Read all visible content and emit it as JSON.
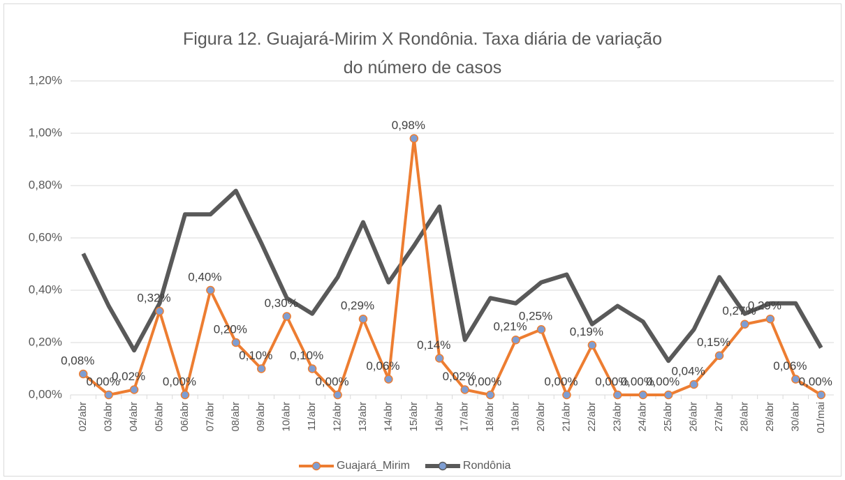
{
  "chart_data": {
    "type": "line",
    "title": "Figura 12. Guajará-Mirim X Rondônia. Taxa diária de variação do número de casos",
    "categories": [
      "02/abr",
      "03/abr",
      "04/abr",
      "05/abr",
      "06/abr",
      "07/abr",
      "08/abr",
      "09/abr",
      "10/abr",
      "11/abr",
      "12/abr",
      "13/abr",
      "14/abr",
      "15/abr",
      "16/abr",
      "17/abr",
      "18/abr",
      "19/abr",
      "20/abr",
      "21/abr",
      "22/abr",
      "23/abr",
      "24/abr",
      "25/abr",
      "26/abr",
      "27/abr",
      "28/abr",
      "29/abr",
      "30/abr",
      "01/mai"
    ],
    "series": [
      {
        "name": "Guajará_Mirim",
        "color": "#ed7d31",
        "values": [
          0.08,
          0.0,
          0.02,
          0.32,
          0.0,
          0.4,
          0.2,
          0.1,
          0.3,
          0.1,
          0.0,
          0.29,
          0.06,
          0.98,
          0.14,
          0.02,
          0.0,
          0.21,
          0.25,
          0.0,
          0.19,
          0.0,
          0.0,
          0.0,
          0.04,
          0.15,
          0.27,
          0.29,
          0.06,
          0.0
        ],
        "value_labels": [
          "0,08%",
          "0,00%",
          "0,02%",
          "0,32%",
          "0,00%",
          "0,40%",
          "0,20%",
          "0,10%",
          "0,30%",
          "0,10%",
          "0,00%",
          "0,29%",
          "0,06%",
          "0,98%",
          "0,14%",
          "0,02%",
          "0,00%",
          "0,21%",
          "0,25%",
          "0,00%",
          "0,19%",
          "0,00%",
          "0,00%",
          "0,00%",
          "0,04%",
          "0,15%",
          "0,27%",
          "0,29%",
          "0,06%",
          "0,00%"
        ]
      },
      {
        "name": "Rondônia",
        "color": "#595959",
        "values": [
          0.54,
          0.34,
          0.17,
          0.35,
          0.69,
          0.69,
          0.78,
          0.58,
          0.37,
          0.31,
          0.45,
          0.66,
          0.43,
          0.57,
          0.72,
          0.21,
          0.37,
          0.35,
          0.43,
          0.46,
          0.27,
          0.34,
          0.28,
          0.13,
          0.25,
          0.45,
          0.31,
          0.35,
          0.35,
          0.18
        ]
      }
    ],
    "ylim": [
      0,
      1.2
    ],
    "yticks": [
      {
        "value": 0,
        "label": "0,00%"
      },
      {
        "value": 0.2,
        "label": "0,20%"
      },
      {
        "value": 0.4,
        "label": "0,40%"
      },
      {
        "value": 0.6,
        "label": "0,60%"
      },
      {
        "value": 0.8,
        "label": "0,80%"
      },
      {
        "value": 1.0,
        "label": "1,00%"
      },
      {
        "value": 1.2,
        "label": "1,20%"
      }
    ],
    "grid": true
  }
}
